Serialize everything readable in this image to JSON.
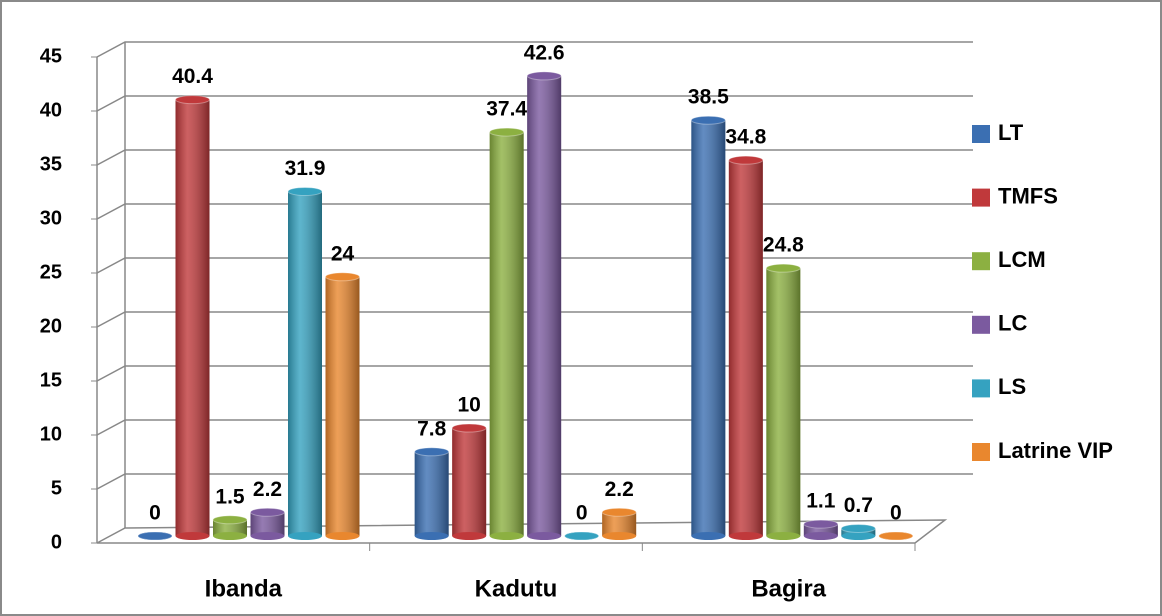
{
  "chart_data": {
    "type": "bar",
    "categories": [
      "Ibanda",
      "Kadutu",
      "Bagira"
    ],
    "series": [
      {
        "name": "LT",
        "color": "#3b6fb2",
        "values": [
          0,
          7.8,
          38.5
        ]
      },
      {
        "name": "TMFS",
        "color": "#c0393b",
        "values": [
          40.4,
          10,
          34.8
        ]
      },
      {
        "name": "LCM",
        "color": "#8cb041",
        "values": [
          1.5,
          37.4,
          24.8
        ]
      },
      {
        "name": "LC",
        "color": "#7b5a9f",
        "values": [
          2.2,
          42.6,
          1.1
        ]
      },
      {
        "name": "LS",
        "color": "#35a2c0",
        "values": [
          31.9,
          0,
          0.7
        ]
      },
      {
        "name": "Latrine VIP",
        "color": "#e9872e",
        "values": [
          24,
          2.2,
          0
        ]
      }
    ],
    "ylim": [
      0,
      45
    ],
    "yticks": [
      0,
      5,
      10,
      15,
      20,
      25,
      30,
      35,
      40,
      45
    ],
    "grid": true,
    "legend": "right"
  }
}
